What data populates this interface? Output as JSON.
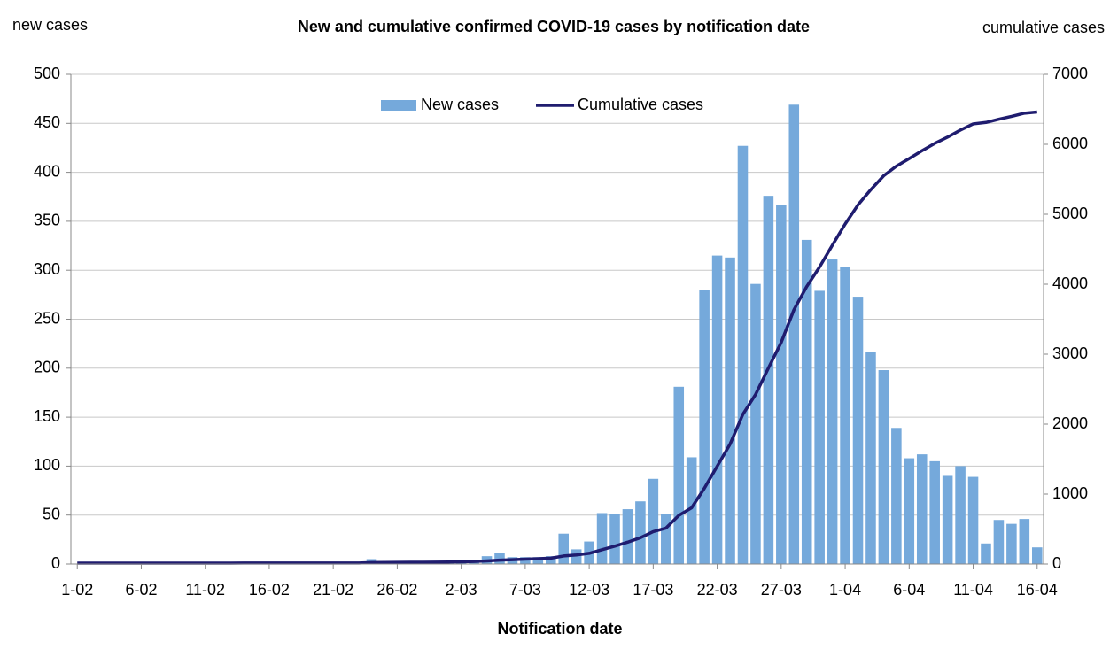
{
  "chart_data": {
    "type": "bar_line",
    "title": "New and cumulative confirmed COVID-19 cases by notification date",
    "y_axis_label": "new cases",
    "y2_axis_label": "cumulative cases",
    "x_axis_label": "Notification date",
    "categories": [
      "1-02",
      null,
      null,
      null,
      null,
      "6-02",
      null,
      null,
      null,
      null,
      "11-02",
      null,
      null,
      null,
      null,
      "16-02",
      null,
      null,
      null,
      null,
      "21-02",
      null,
      null,
      null,
      null,
      "26-02",
      null,
      null,
      null,
      null,
      "2-03",
      null,
      null,
      null,
      null,
      "7-03",
      null,
      null,
      null,
      null,
      "12-03",
      null,
      null,
      null,
      null,
      "17-03",
      null,
      null,
      null,
      null,
      "22-03",
      null,
      null,
      null,
      null,
      "27-03",
      null,
      null,
      null,
      null,
      "1-04",
      null,
      null,
      null,
      null,
      "6-04",
      null,
      null,
      null,
      null,
      "11-04",
      null,
      null,
      null,
      null,
      "16-04"
    ],
    "series": [
      {
        "name": "New cases",
        "type": "bar",
        "color": "#75a9db",
        "values": [
          0,
          0,
          0,
          0,
          0,
          0,
          1,
          0,
          0,
          0,
          0,
          0,
          0,
          2,
          0,
          0,
          0,
          0,
          0,
          0,
          0,
          0,
          0,
          5,
          2,
          1,
          2,
          1,
          1,
          2,
          3,
          4,
          8,
          11,
          7,
          7,
          7,
          8,
          31,
          15,
          23,
          52,
          51,
          56,
          64,
          87,
          51,
          181,
          109,
          280,
          315,
          313,
          427,
          286,
          376,
          367,
          469,
          331,
          279,
          311,
          303,
          273,
          217,
          198,
          139,
          108,
          112,
          105,
          90,
          100,
          89,
          21,
          45,
          41,
          46,
          17
        ]
      },
      {
        "name": "Cumulative cases",
        "type": "line",
        "axis": "y2",
        "color": "#1f1c6f",
        "values": [
          12,
          12,
          12,
          12,
          12,
          12,
          13,
          13,
          13,
          13,
          13,
          13,
          13,
          15,
          15,
          15,
          15,
          15,
          15,
          15,
          15,
          15,
          15,
          20,
          22,
          23,
          25,
          26,
          27,
          29,
          32,
          36,
          44,
          55,
          62,
          69,
          76,
          84,
          115,
          130,
          153,
          205,
          256,
          312,
          376,
          463,
          514,
          695,
          804,
          1084,
          1399,
          1712,
          2139,
          2425,
          2801,
          3168,
          3637,
          3968,
          4247,
          4558,
          4861,
          5134,
          5351,
          5549,
          5688,
          5796,
          5908,
          6013,
          6103,
          6203,
          6292,
          6313,
          6358,
          6399,
          6445,
          6462
        ]
      }
    ],
    "ylim": [
      0,
      500
    ],
    "yticks": [
      0,
      50,
      100,
      150,
      200,
      250,
      300,
      350,
      400,
      450,
      500
    ],
    "y2lim": [
      0,
      7000
    ],
    "y2ticks": [
      0,
      1000,
      2000,
      3000,
      4000,
      5000,
      6000,
      7000
    ],
    "grid": true,
    "legend": "top"
  }
}
